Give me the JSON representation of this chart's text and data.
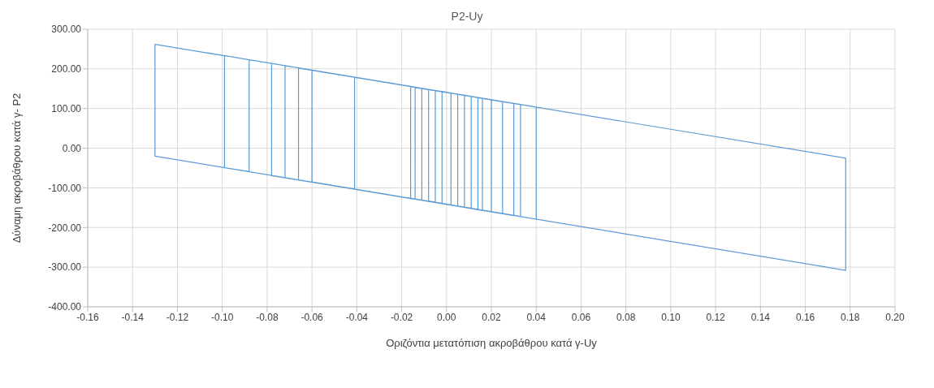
{
  "chart_data": {
    "type": "line",
    "title": "P2-Uy",
    "xlabel": "Οριζόντια μετατόπιση ακροβάθρου κατά γ-Uy",
    "ylabel": "Δύναμη ακροβάθρου κατά γ- P2",
    "grid": true,
    "marker": "none",
    "line_style": "solid",
    "xlim": [
      -0.16,
      0.2
    ],
    "xticks": [
      {
        "value": -0.16,
        "label": "-0.16"
      },
      {
        "value": -0.14,
        "label": "-0.14"
      },
      {
        "value": -0.12,
        "label": "-0.12"
      },
      {
        "value": -0.1,
        "label": "-0.10"
      },
      {
        "value": -0.08,
        "label": "-0.08"
      },
      {
        "value": -0.06,
        "label": "-0.06"
      },
      {
        "value": -0.04,
        "label": "-0.04"
      },
      {
        "value": -0.02,
        "label": "-0.02"
      },
      {
        "value": 0,
        "label": "0.00"
      },
      {
        "value": 0.02,
        "label": "0.02"
      },
      {
        "value": 0.04,
        "label": "0.04"
      },
      {
        "value": 0.06,
        "label": "0.06"
      },
      {
        "value": 0.08,
        "label": "0.08"
      },
      {
        "value": 0.1,
        "label": "0.10"
      },
      {
        "value": 0.12,
        "label": "0.12"
      },
      {
        "value": 0.14,
        "label": "0.14"
      },
      {
        "value": 0.16,
        "label": "0.16"
      },
      {
        "value": 0.18,
        "label": "0.18"
      },
      {
        "value": 0.2,
        "label": "0.20"
      }
    ],
    "ylim": [
      -400,
      300
    ],
    "yticks": [
      {
        "value": -400,
        "label": "-400.00"
      },
      {
        "value": -300,
        "label": "-300.00"
      },
      {
        "value": -200,
        "label": "-200.00"
      },
      {
        "value": -100,
        "label": "-100.00"
      },
      {
        "value": 0,
        "label": "0.00"
      },
      {
        "value": 100,
        "label": "100.00"
      },
      {
        "value": 200,
        "label": "200.00"
      },
      {
        "value": 300,
        "label": "300.00"
      }
    ],
    "series": [
      {
        "color": "#5b9bd5",
        "x": [
          0.002,
          0.002,
          -0.002,
          -0.002,
          0.005,
          0.005,
          -0.005,
          -0.005,
          0.008,
          0.008,
          -0.008,
          -0.008,
          0.011,
          0.011,
          -0.011,
          -0.011,
          0.014,
          0.014,
          -0.014,
          -0.014,
          0.016,
          0.016,
          -0.016,
          -0.016,
          0.02,
          0.02,
          -0.041,
          -0.041,
          0.025,
          0.025,
          -0.06,
          -0.06,
          0.03,
          0.03,
          -0.066,
          -0.066,
          0.033,
          0.033,
          -0.072,
          -0.072,
          0.04,
          0.04,
          -0.078,
          -0.078,
          -0.088,
          -0.088,
          -0.099,
          -0.099,
          -0.13,
          0.178,
          0.178,
          -0.13,
          -0.13
        ],
        "values": [
          139,
          -143,
          -139,
          143,
          136,
          -146,
          -136,
          145,
          133,
          -149,
          -133,
          148,
          131,
          -152,
          -131,
          151,
          128,
          -155,
          -128,
          153,
          126,
          -156,
          -126,
          155,
          122,
          -160,
          -103,
          179,
          117,
          -165,
          -85,
          197,
          113,
          -170,
          -80,
          202,
          110,
          -172,
          -74,
          208,
          104,
          -179,
          -69,
          214,
          223,
          -59,
          -49,
          233,
          262,
          -25,
          -308,
          -20,
          262
        ]
      }
    ]
  }
}
